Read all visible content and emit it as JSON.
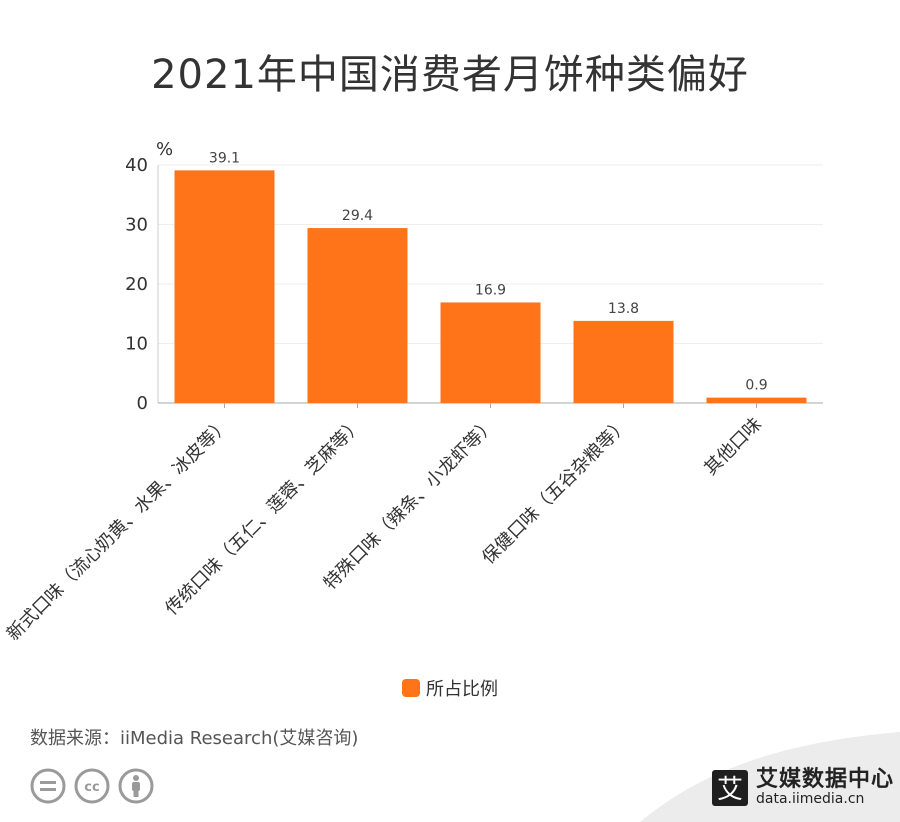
{
  "title": "2021年中国消费者月饼种类偏好",
  "chart_data": {
    "type": "bar",
    "title": "2021年中国消费者月饼种类偏好",
    "ylabel": "%",
    "xlabel": "",
    "ylim": [
      0,
      40
    ],
    "yticks": [
      0,
      10,
      20,
      30,
      40
    ],
    "grid": true,
    "legend_position": "bottom",
    "categories": [
      "新式口味（流心奶黄、水果、冰皮等）",
      "传统口味（五仁、莲蓉、芝麻等）",
      "特殊口味（辣条、小龙虾等）",
      "保健口味（五谷杂粮等）",
      "其他口味"
    ],
    "series": [
      {
        "name": "所占比例",
        "values": [
          39.1,
          29.4,
          16.9,
          13.8,
          0.9
        ],
        "color": "#ff7419"
      }
    ]
  },
  "legend": {
    "label": "所占比例",
    "color": "#ff7419"
  },
  "source": "数据来源：iiMedia Research(艾媒咨询)",
  "brand": {
    "name": "艾媒数据中心",
    "url": "data.iimedia.cn",
    "logo_char": "艾"
  },
  "icons": [
    "equals-circle-icon",
    "cc-icon",
    "person-icon"
  ]
}
